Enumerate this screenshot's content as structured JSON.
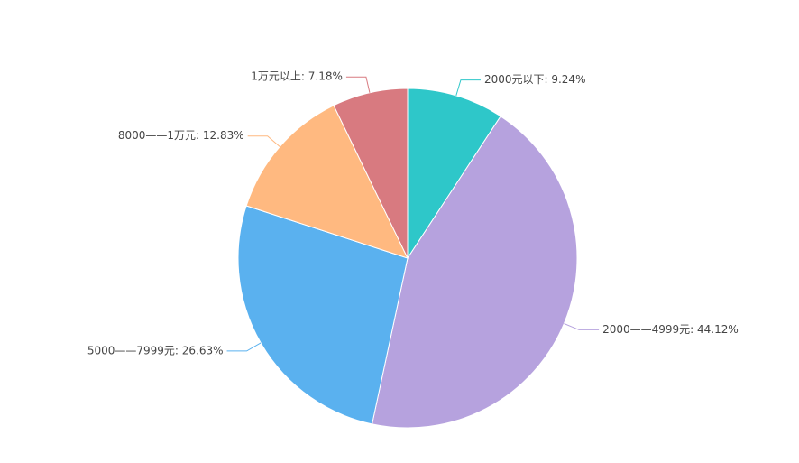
{
  "chart_data": {
    "type": "pie",
    "labels": [
      "2000元以下: 9.24%",
      "2000——4999元: 44.12%",
      "5000——7999元: 26.63%",
      "8000——1万元: 12.83%",
      "1万元以上: 7.18%"
    ],
    "values": [
      9.24,
      44.12,
      26.63,
      12.83,
      7.18
    ],
    "colors": [
      "#2ec7c9",
      "#b6a2de",
      "#5ab1ef",
      "#ffb980",
      "#d87a80"
    ]
  }
}
